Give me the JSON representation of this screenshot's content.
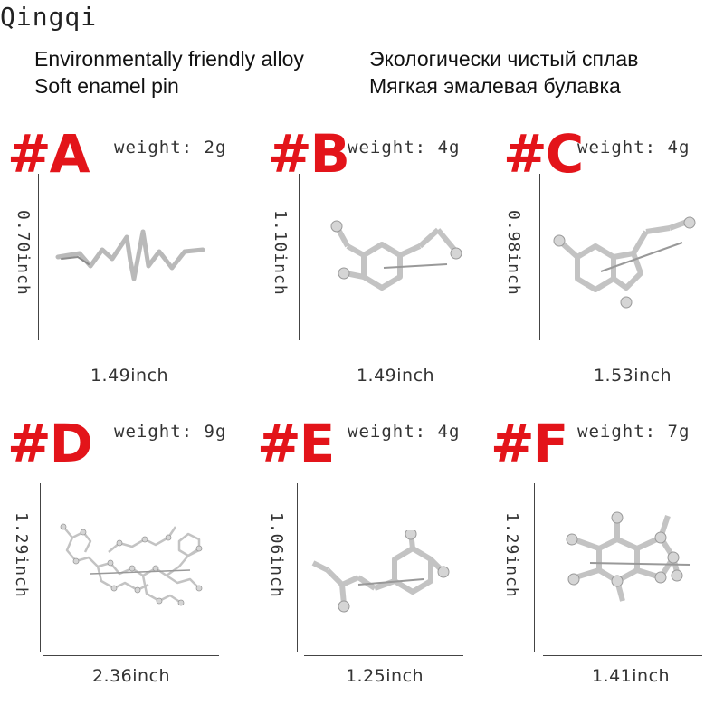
{
  "brand": "Qingqi",
  "description": {
    "english": [
      "Environmentally friendly alloy",
      "Soft enamel pin"
    ],
    "russian": [
      "Экологически чистый сплав",
      "Мягкая эмалевая булавка"
    ]
  },
  "products": [
    {
      "label": "#A",
      "weight": "weight: 2g",
      "height": "0.70inch",
      "width": "1.49inch",
      "icon": "heartbeat-pin-icon"
    },
    {
      "label": "#B",
      "weight": "weight: 4g",
      "height": "1.10inch",
      "width": "1.49inch",
      "icon": "dopamine-molecule-pin-icon"
    },
    {
      "label": "#C",
      "weight": "weight: 4g",
      "height": "0.98inch",
      "width": "1.53inch",
      "icon": "serotonin-molecule-pin-icon"
    },
    {
      "label": "#D",
      "weight": "weight: 9g",
      "height": "1.29inch",
      "width": "2.36inch",
      "icon": "oxytocin-molecule-pin-icon"
    },
    {
      "label": "#E",
      "weight": "weight: 4g",
      "height": "1.06inch",
      "width": "1.25inch",
      "icon": "adrenaline-molecule-pin-icon"
    },
    {
      "label": "#F",
      "weight": "weight: 7g",
      "height": "1.29inch",
      "width": "1.41inch",
      "icon": "caffeine-molecule-pin-icon"
    }
  ],
  "colors": {
    "label": "#e3141a",
    "metal": "#c9c9c9",
    "metal_edge": "#8a8a8a"
  }
}
